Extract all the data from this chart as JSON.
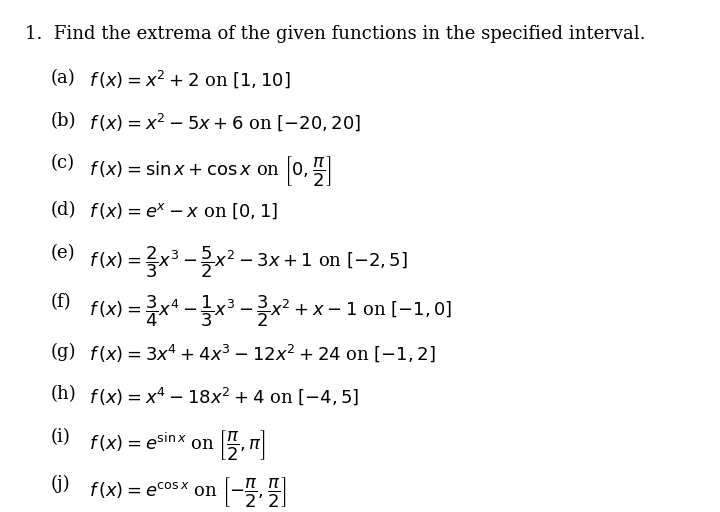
{
  "title_number": "1.",
  "title_text": "Find the extrema of the given functions in the specified interval.",
  "items": [
    {
      "label": "(a)",
      "latex": "$f\\,(x) = x^2 + 2$ on $[1, 10]$"
    },
    {
      "label": "(b)",
      "latex": "$f\\,(x) = x^2 - 5x + 6$ on $[-20, 20]$"
    },
    {
      "label": "(c)",
      "latex": "$f\\,(x) = \\sin x + \\cos x$ on $\\left[0, \\dfrac{\\pi}{2}\\right]$"
    },
    {
      "label": "(d)",
      "latex": "$f\\,(x) = e^{x} - x$ on $[0, 1]$"
    },
    {
      "label": "(e)",
      "latex": "$f\\,(x) = \\dfrac{2}{3}x^3 - \\dfrac{5}{2}x^2 - 3x + 1$ on $[-2, 5]$"
    },
    {
      "label": "(f)",
      "latex": "$f\\,(x) = \\dfrac{3}{4}x^4 - \\dfrac{1}{3}x^3 - \\dfrac{3}{2}x^2 + x - 1$ on $[-1, 0]$"
    },
    {
      "label": "(g)",
      "latex": "$f\\,(x) = 3x^4 + 4x^3 - 12x^2 + 24$ on $[-1, 2]$"
    },
    {
      "label": "(h)",
      "latex": "$f\\,(x) = x^4 - 18x^2 + 4$ on $[-4, 5]$"
    },
    {
      "label": "(i)",
      "latex": "$f\\,(x) = e^{\\sin x}$ on $\\left[\\dfrac{\\pi}{2}, \\pi\\right]$"
    },
    {
      "label": "(j)",
      "latex": "$f\\,(x) = e^{\\cos x}$ on $\\left[-\\dfrac{\\pi}{2}, \\dfrac{\\pi}{2}\\right]$"
    }
  ],
  "bg_color": "#ffffff",
  "text_color": "#000000",
  "font_size": 13,
  "title_font_size": 13,
  "fig_width": 7.2,
  "fig_height": 5.12,
  "dpi": 100
}
